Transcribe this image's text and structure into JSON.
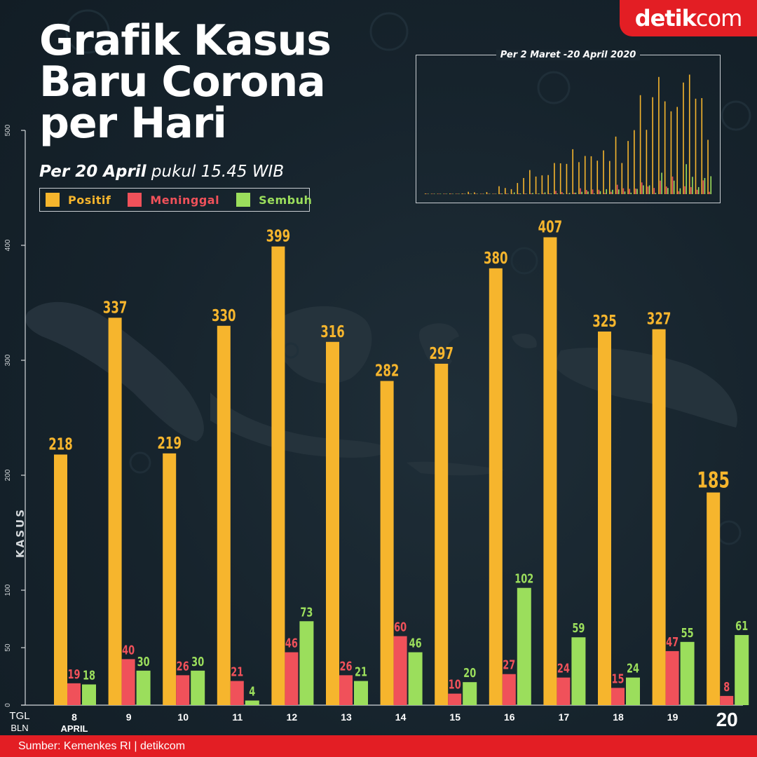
{
  "header": {
    "title_lines": [
      "Grafik Kasus",
      "Baru Corona",
      "per Hari"
    ],
    "subtitle_bold": "Per 20 April",
    "subtitle_rest": " pukul 15.45 WIB"
  },
  "logo": {
    "text_a": "detik",
    "text_b": "com"
  },
  "legend": [
    {
      "label": "Positif",
      "color": "#f6b52d"
    },
    {
      "label": "Meninggal",
      "color": "#f0515a"
    },
    {
      "label": "Sembuh",
      "color": "#9bde5c"
    }
  ],
  "inset": {
    "title": "Per 2 Maret -20 April 2020"
  },
  "footer": {
    "source": "Sumber: Kemenkes RI | detikcom"
  },
  "chart_data": [
    {
      "type": "bar",
      "ylabel": "KASUS",
      "ylim": [
        0,
        500
      ],
      "yticks": [
        0,
        50,
        100,
        200,
        300,
        400,
        500
      ],
      "x_label_top": "TGL",
      "x_label_bottom": "BLN",
      "month_label": "APRIL",
      "categories": [
        "8",
        "9",
        "10",
        "11",
        "12",
        "13",
        "14",
        "15",
        "16",
        "17",
        "18",
        "19",
        "20"
      ],
      "series": [
        {
          "name": "Positif",
          "color": "#f6b52d",
          "values": [
            218,
            337,
            219,
            330,
            399,
            316,
            282,
            297,
            380,
            407,
            325,
            327,
            185
          ]
        },
        {
          "name": "Meninggal",
          "color": "#f0515a",
          "values": [
            19,
            40,
            26,
            21,
            46,
            26,
            60,
            10,
            27,
            24,
            15,
            47,
            8
          ]
        },
        {
          "name": "Sembuh",
          "color": "#9bde5c",
          "values": [
            18,
            30,
            30,
            4,
            73,
            21,
            46,
            20,
            102,
            59,
            24,
            55,
            61
          ]
        }
      ],
      "grid": false,
      "legend": "top-left"
    },
    {
      "type": "bar",
      "period": "Per 2 Maret -20 April 2020",
      "ylim": [
        0,
        420
      ],
      "series": [
        {
          "name": "Positif",
          "color": "#f6b52d",
          "values": [
            2,
            0,
            0,
            0,
            2,
            0,
            2,
            8,
            6,
            0,
            7,
            0,
            27,
            21,
            17,
            38,
            55,
            82,
            60,
            64,
            65,
            106,
            105,
            103,
            153,
            109,
            130,
            129,
            114,
            149,
            113,
            196,
            106,
            181,
            218,
            337,
            219,
            330,
            399,
            316,
            282,
            297,
            380,
            407,
            325,
            327,
            185
          ]
        },
        {
          "name": "Meninggal",
          "color": "#f0515a",
          "values": [
            0,
            0,
            0,
            0,
            0,
            0,
            0,
            0,
            0,
            0,
            0,
            0,
            1,
            1,
            0,
            2,
            1,
            2,
            0,
            3,
            2,
            11,
            7,
            0,
            5,
            20,
            14,
            16,
            15,
            4,
            8,
            32,
            20,
            18,
            19,
            40,
            26,
            21,
            46,
            26,
            60,
            10,
            27,
            24,
            15,
            47,
            8
          ]
        },
        {
          "name": "Sembuh",
          "color": "#9bde5c",
          "values": [
            0,
            0,
            0,
            0,
            0,
            0,
            0,
            0,
            0,
            0,
            0,
            0,
            2,
            0,
            6,
            2,
            0,
            4,
            1,
            6,
            1,
            1,
            2,
            4,
            5,
            8,
            9,
            2,
            10,
            17,
            15,
            16,
            9,
            5,
            18,
            30,
            30,
            4,
            73,
            21,
            46,
            20,
            102,
            59,
            24,
            55,
            61
          ]
        }
      ]
    }
  ]
}
